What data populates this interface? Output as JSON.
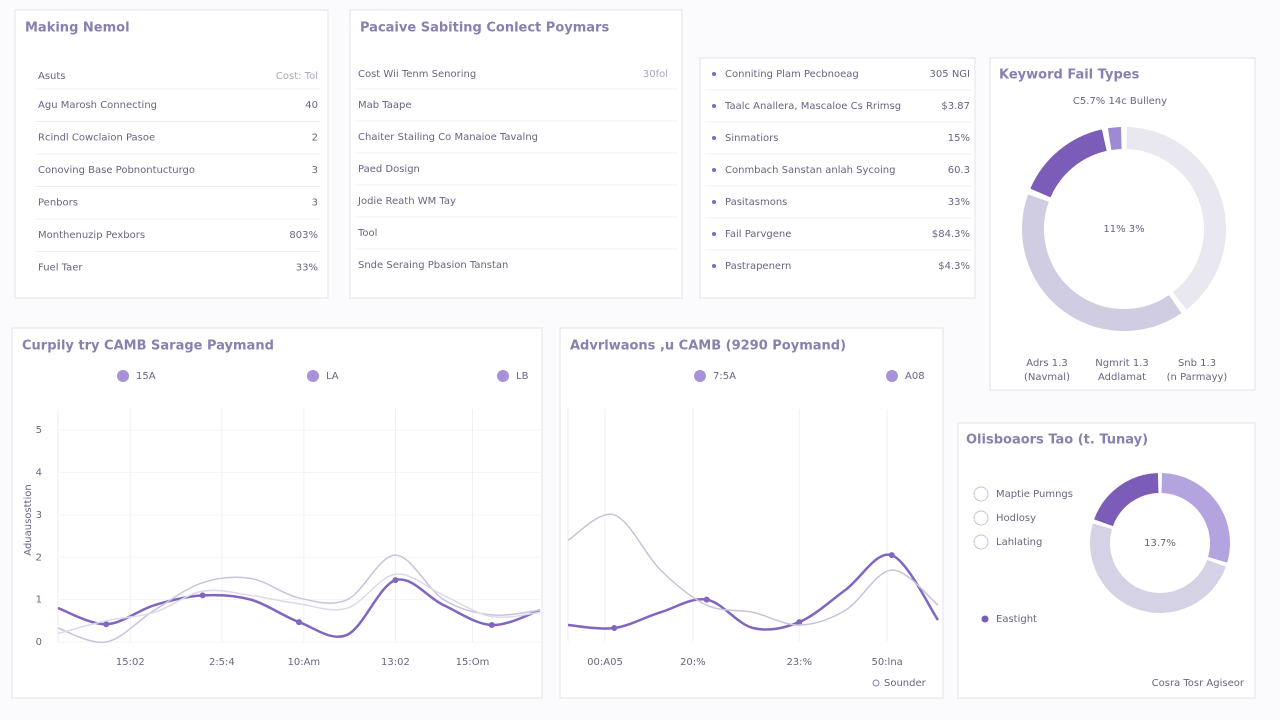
{
  "panel_a": {
    "title": "Making Nemol",
    "header": [
      "Asuts",
      "Cost: Tol"
    ],
    "rows": [
      [
        "Agu Marosh Connecting",
        "40"
      ],
      [
        "Rcindl Cowclaion Pasoe",
        "2"
      ],
      [
        "Conoving Base Pobnontucturgo",
        "3"
      ],
      [
        "Penbors",
        "3"
      ],
      [
        "Monthenuzip Pexbors",
        "803%"
      ],
      [
        "Fuel Taer",
        "33%"
      ]
    ]
  },
  "panel_b": {
    "title": "Pacaive Sabiting Conlect Poymars",
    "header": [
      "Cost Wii Tenm Senoring",
      "30fol"
    ],
    "rows": [
      "Mab Taape",
      "Chaiter Stailing Co Manaioe Tavalng",
      "Paed Dosign",
      "Jodie Reath WM Tay",
      "Tool",
      "Snde Seraing Pbasion Tanstan"
    ]
  },
  "panel_c": {
    "rows": [
      [
        "Conniting Plam Pecbnoeag",
        "305 NGI"
      ],
      [
        "Taalc Anallera, Mascaloe Cs Rrimsg",
        "$3.87"
      ],
      [
        "Sinmatiors",
        "15%"
      ],
      [
        "Conmbach Sanstan anlah Sycoing",
        "60.3"
      ],
      [
        "Pasitasmons",
        "33%"
      ],
      [
        "Fail Parvgene",
        "$84.3%"
      ],
      [
        "Pastrapenern",
        "$4.3%"
      ]
    ]
  },
  "donut_a": {
    "type": "pie",
    "title": "Keyword Fail Types",
    "subtitle": "C5.7% 14c Bulleny",
    "center": "11% 3%",
    "values": [
      40,
      41,
      16,
      3
    ],
    "colors": [
      "#e9e7ef",
      "#d0cce2",
      "#7b5cb8",
      "#9d8bd2"
    ],
    "legend": [
      [
        "Adrs 1.3",
        "(Navmal)"
      ],
      [
        "Ngmrit 1.3",
        "Addlamat"
      ],
      [
        "Snb 1.3",
        "(n Parmayy)"
      ]
    ]
  },
  "line_a": {
    "type": "line",
    "title": "Curpily try CAMB Sarage Paymand",
    "y_label": "Aduausosttion",
    "x": [
      0,
      1,
      2,
      3,
      4,
      5,
      6,
      7,
      8,
      9,
      10
    ],
    "xlim": [
      0,
      10
    ],
    "ylim": [
      0,
      5.5
    ],
    "yticks": [
      0,
      1,
      2,
      3,
      4,
      5
    ],
    "grid": true,
    "xticks": [
      {
        "value": 1.5,
        "label": "15:02"
      },
      {
        "value": 3.4,
        "label": "2:5:4"
      },
      {
        "value": 5.1,
        "label": "10:Am"
      },
      {
        "value": 7,
        "label": "13:02"
      },
      {
        "value": 8.6,
        "label": "15:Om"
      }
    ],
    "series": [
      {
        "name": "15A",
        "color": "#8066c0",
        "values": [
          0.8,
          0.42,
          0.87,
          1.1,
          1.0,
          0.47,
          0.17,
          1.46,
          0.87,
          0.4,
          0.75
        ]
      },
      {
        "name": "LA",
        "color": "#c9c2dc",
        "values": [
          0.33,
          0,
          0.75,
          1.4,
          1.5,
          1.04,
          1.0,
          2.05,
          1.0,
          0.64,
          0.75
        ]
      },
      {
        "name": "LB",
        "color": "#ddd8ea",
        "values": [
          0.2,
          0.5,
          0.7,
          1.2,
          1.1,
          0.9,
          0.8,
          1.6,
          1.1,
          0.6,
          0.7
        ]
      }
    ]
  },
  "line_b": {
    "type": "line",
    "title": "Advrlwaons ,u CAMB (9290 Poymand)",
    "footer": "Sounder",
    "x": [
      0,
      1,
      2,
      3,
      4,
      5,
      6,
      7,
      8
    ],
    "xlim": [
      0,
      8
    ],
    "ylim": [
      0,
      5.5
    ],
    "grid": true,
    "xticks": [
      {
        "value": 0.8,
        "label": "00:A05"
      },
      {
        "value": 2.7,
        "label": "20:%"
      },
      {
        "value": 5,
        "label": "23:%"
      },
      {
        "value": 6.9,
        "label": "50:lna"
      }
    ],
    "series": [
      {
        "name": "7:5A",
        "color": "#8066c0",
        "values": [
          0.4,
          0.33,
          0.7,
          1.0,
          0.33,
          0.47,
          1.23,
          2.05,
          0.52
        ]
      },
      {
        "name": "A08",
        "color": "#c9c2dc",
        "values": [
          2.4,
          3.0,
          1.7,
          0.87,
          0.7,
          0.4,
          0.75,
          1.7,
          0.87
        ]
      }
    ]
  },
  "donut_b": {
    "type": "pie",
    "title": "Olisboaors Tao (t. Tunay)",
    "center": "13.7%",
    "footer": "Cosra Tosr Agiseor",
    "options": [
      "Maptie Pumngs",
      "Hodlosy",
      "Lahlating"
    ],
    "legend": "Eastight",
    "values": [
      30,
      50,
      20
    ],
    "colors": [
      "#b3a4e0",
      "#d6d2e6",
      "#7b5cb8"
    ]
  }
}
